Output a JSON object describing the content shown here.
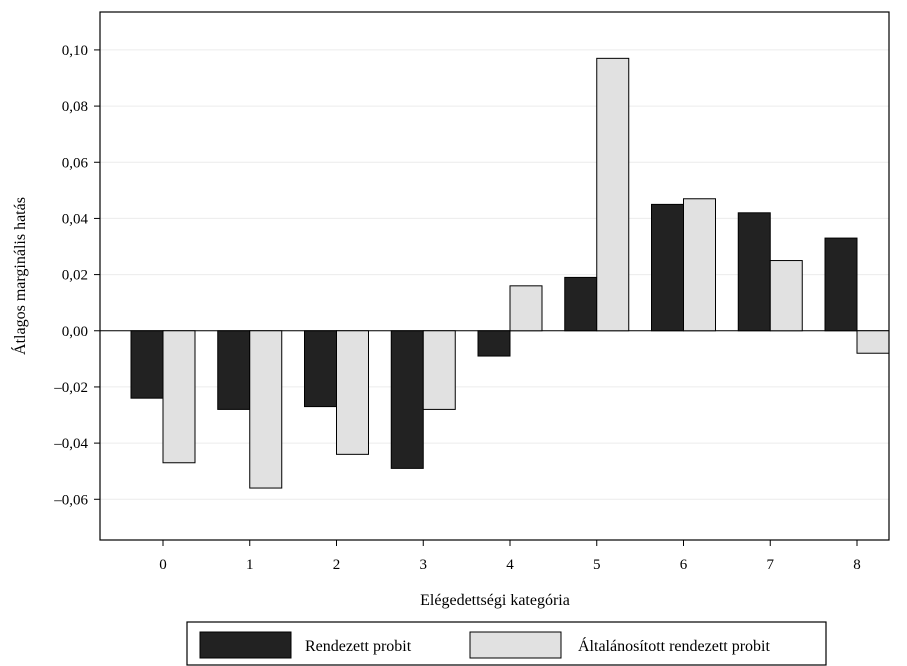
{
  "chart_data": {
    "type": "bar",
    "xlabel": "Elégedettségi kategória",
    "ylabel": "Átlagos marginális hatás",
    "categories": [
      "0",
      "1",
      "2",
      "3",
      "4",
      "5",
      "6",
      "7",
      "8"
    ],
    "series": [
      {
        "name": "Rendezett probit",
        "color": "#222222",
        "values": [
          -0.024,
          -0.028,
          -0.027,
          -0.049,
          -0.009,
          0.019,
          0.045,
          0.042,
          0.033
        ]
      },
      {
        "name": "Általánosított rendezett probit",
        "color": "#e1e1e1",
        "values": [
          -0.047,
          -0.056,
          -0.044,
          -0.028,
          0.016,
          0.097,
          0.047,
          0.025,
          -0.008
        ]
      }
    ],
    "yticks": [
      0.1,
      0.08,
      0.06,
      0.04,
      0.02,
      0.0,
      -0.02,
      -0.04,
      -0.06
    ],
    "ytick_labels": [
      "0,10",
      "0,08",
      "0,06",
      "0,04",
      "0,02",
      "0,00",
      "–0,02",
      "–0,04",
      "–0,06"
    ],
    "ylim": [
      -0.0745,
      0.1135
    ],
    "grid": true,
    "legend_position": "bottom"
  }
}
